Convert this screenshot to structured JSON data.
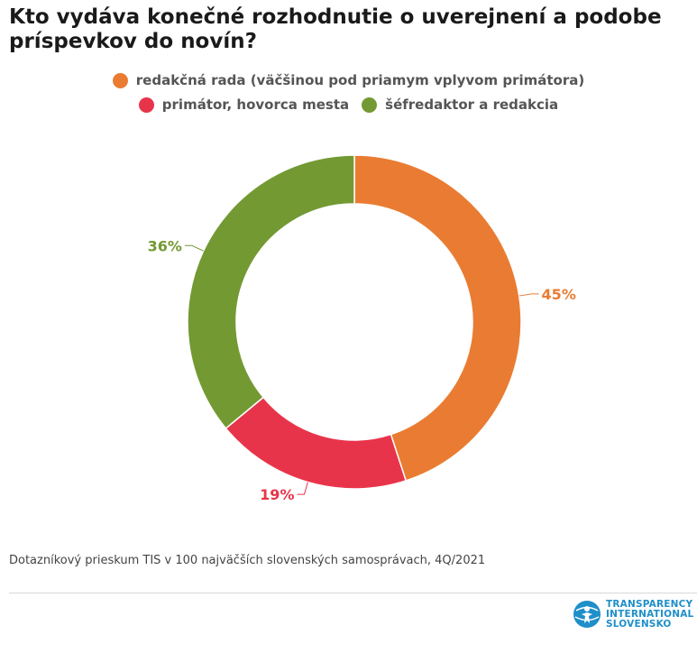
{
  "title": "Kto vydáva konečné rozhodnutie o uverejnení a podobe príspevkov do novín?",
  "legend": [
    {
      "label": "redakčná rada (väčšinou pod priamym vplyvom primátora)",
      "color": "#E97C32"
    },
    {
      "label": "primátor, hovorca mesta",
      "color": "#E8344A"
    },
    {
      "label": "šéfredaktor a redakcia",
      "color": "#739933"
    }
  ],
  "chart_data": {
    "type": "pie",
    "variant": "donut",
    "categories": [
      "redakčná rada (väčšinou pod priamym vplyvom primátora)",
      "primátor, hovorca mesta",
      "šéfredaktor a redakcia"
    ],
    "values": [
      45,
      19,
      36
    ],
    "labels": [
      "45%",
      "19%",
      "36%"
    ],
    "colors": [
      "#E97C32",
      "#E8344A",
      "#739933"
    ],
    "legend_position": "top"
  },
  "source": "Dotazníkový prieskum TIS v 100 najväčších slovenských samosprávach,  4Q/2021",
  "logo": {
    "lines": [
      "TRANSPARENCY",
      "INTERNATIONAL",
      "SLOVENSKO"
    ]
  }
}
